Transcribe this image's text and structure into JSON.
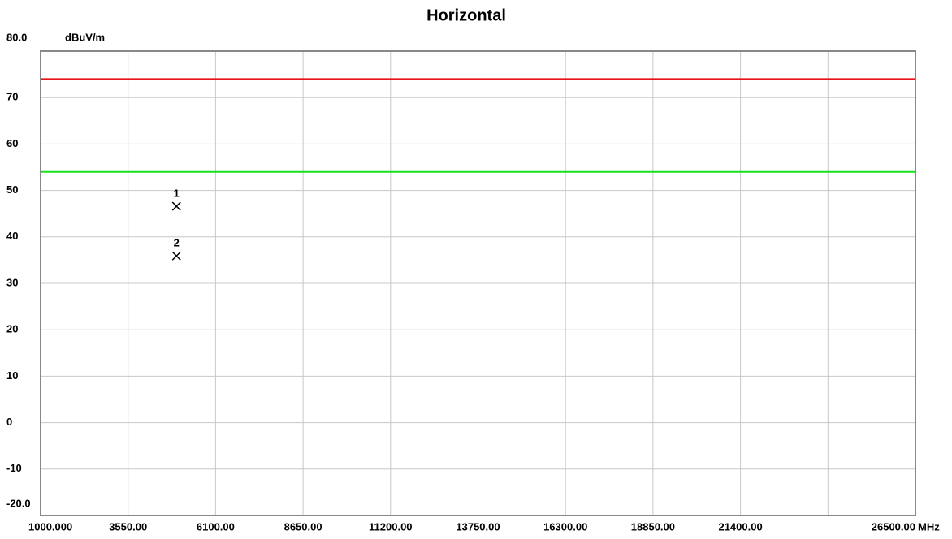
{
  "chart_data": {
    "type": "scatter",
    "title": "Horizontal",
    "y_unit": "dBuV/m",
    "x_unit": "MHz",
    "xlim": [
      1000,
      26500
    ],
    "ylim": [
      -20,
      80
    ],
    "xticks": [
      {
        "value": 1000,
        "label": "1000.000"
      },
      {
        "value": 3550,
        "label": "3550.00"
      },
      {
        "value": 6100,
        "label": "6100.00"
      },
      {
        "value": 8650,
        "label": "8650.00"
      },
      {
        "value": 11200,
        "label": "11200.00"
      },
      {
        "value": 13750,
        "label": "13750.00"
      },
      {
        "value": 16300,
        "label": "16300.00"
      },
      {
        "value": 18850,
        "label": "18850.00"
      },
      {
        "value": 21400,
        "label": "21400.00"
      },
      {
        "value": 23950,
        "label": null
      },
      {
        "value": 26500,
        "label": "26500.00"
      }
    ],
    "yticks": [
      {
        "value": -20,
        "label": "-20.0"
      },
      -10,
      0,
      10,
      20,
      30,
      40,
      50,
      60,
      70,
      {
        "value": 80,
        "label": "80.0"
      }
    ],
    "grid": true,
    "limit_lines": [
      {
        "value": 74,
        "color": "#e8121b"
      },
      {
        "value": 54,
        "color": "#18e01c"
      }
    ],
    "points": {
      "x": [
        4960,
        4960
      ],
      "values": [
        46.6,
        35.9
      ],
      "labels": [
        "1",
        "2"
      ],
      "color": "#000000"
    }
  }
}
